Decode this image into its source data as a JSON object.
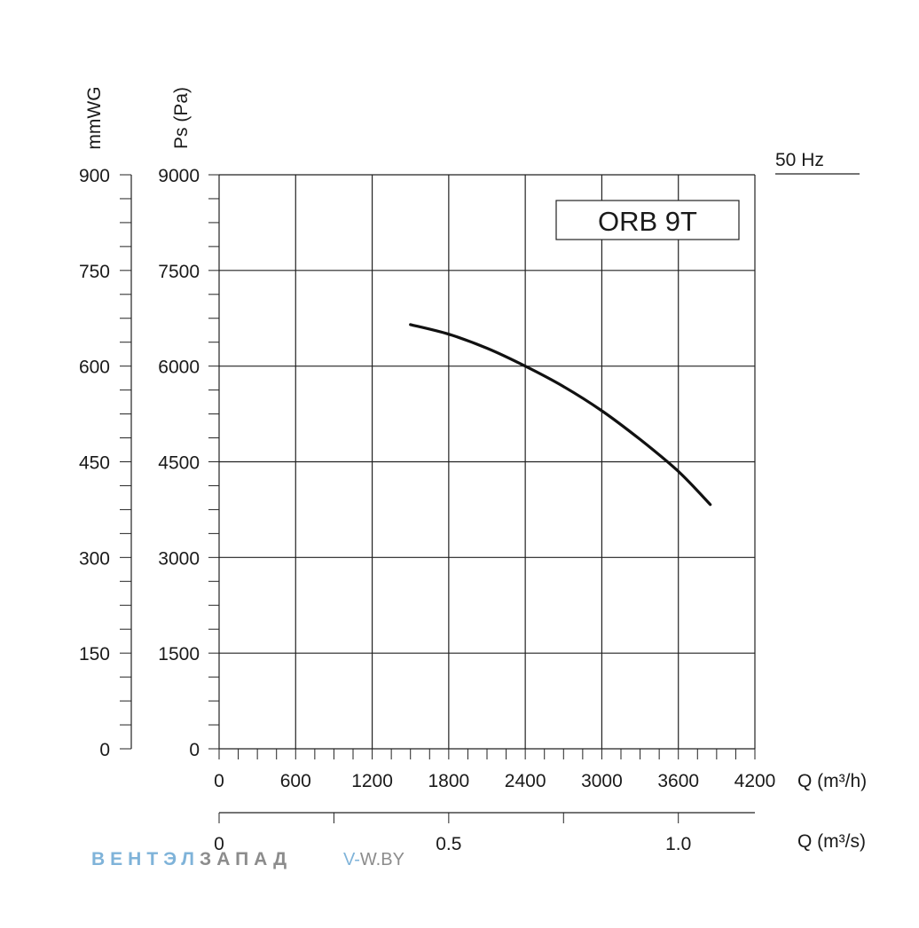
{
  "chart_data": {
    "type": "line",
    "title": "ORB 9T",
    "frequency_label": "50 Hz",
    "xlabel": "Q (m³/h)",
    "xlim": [
      0,
      4200
    ],
    "x_ticks": [
      "0",
      "600",
      "1200",
      "1800",
      "2400",
      "3000",
      "3600",
      "4200"
    ],
    "ylabel": "Ps (Pa)",
    "ylim": [
      0,
      9000
    ],
    "y_ticks": [
      "0",
      "1500",
      "3000",
      "4500",
      "6000",
      "7500",
      "9000"
    ],
    "y2label": "mmWG",
    "y2lim": [
      0,
      900
    ],
    "y2_ticks": [
      "0",
      "150",
      "300",
      "450",
      "600",
      "750",
      "900"
    ],
    "x2label": "Q (m³/s)",
    "x2lim": [
      0,
      1.1667
    ],
    "x2_ticks": [
      "0",
      "0.5",
      "1.0"
    ],
    "grid": true,
    "series": [
      {
        "x": [
          1500,
          1800,
          2100,
          2400,
          2700,
          3000,
          3300,
          3600,
          3850
        ],
        "y": [
          6650,
          6500,
          6280,
          6000,
          5680,
          5300,
          4850,
          4350,
          3830
        ]
      }
    ]
  },
  "watermark": {
    "brand_part1": "ВЕНТЭЛ",
    "brand_part2": "ЗАПАД",
    "site_part1": "V-",
    "site_part2": "W.BY",
    "colors": {
      "blue": "#7fb3d9",
      "gray": "#8c8c8c"
    }
  }
}
